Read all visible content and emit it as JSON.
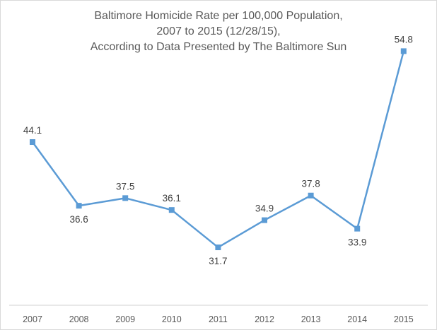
{
  "chart_data": {
    "type": "line",
    "title": "Baltimore Homicide Rate per 100,000 Population, 2007 to 2015 (12/28/15), According to Data Presented by The Baltimore Sun",
    "title_lines": [
      "Baltimore Homicide Rate per 100,000 Population,",
      "2007 to 2015 (12/28/15),",
      "According to Data Presented by The Baltimore Sun"
    ],
    "categories": [
      "2007",
      "2008",
      "2009",
      "2010",
      "2011",
      "2012",
      "2013",
      "2014",
      "2015"
    ],
    "series": [
      {
        "name": "Homicide Rate per 100,000",
        "values": [
          44.1,
          36.6,
          37.5,
          36.1,
          31.7,
          34.9,
          37.8,
          33.9,
          54.8
        ],
        "color": "#5b9bd5",
        "marker": "square"
      }
    ],
    "data_label_positions": [
      "above",
      "below",
      "above",
      "above",
      "below",
      "above",
      "above",
      "below",
      "above"
    ],
    "xlabel": "",
    "ylabel": "",
    "y_axis_visible": false,
    "ylim": [
      24.9,
      60
    ],
    "grid": false,
    "legend": null
  },
  "colors": {
    "line": "#5b9bd5",
    "text": "#595959",
    "axis": "#d9d9d9"
  }
}
